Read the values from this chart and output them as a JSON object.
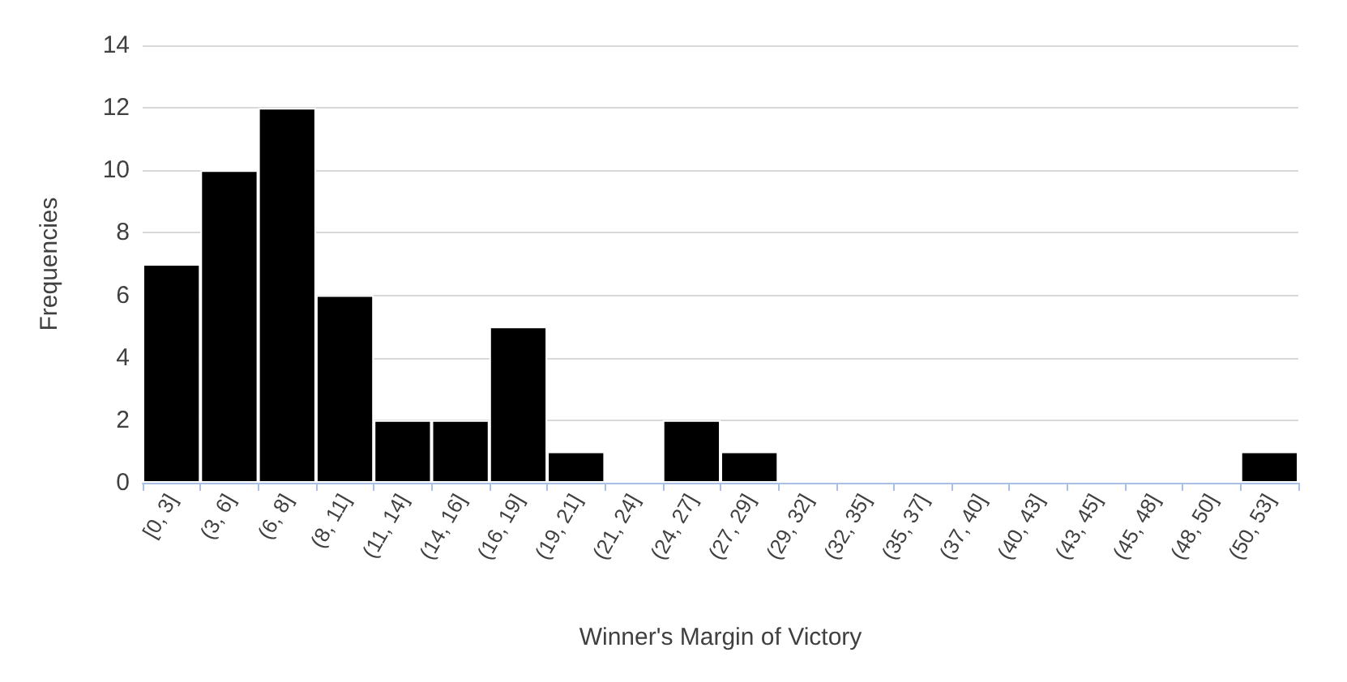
{
  "chart_data": {
    "type": "bar",
    "xlabel": "Winner's Margin of Victory",
    "ylabel": "Frequencies",
    "categories": [
      "[0, 3]",
      "(3, 6]",
      "(6, 8]",
      "(8, 11]",
      "(11, 14]",
      "(14, 16]",
      "(16, 19]",
      "(19, 21]",
      "(21, 24]",
      "(24, 27]",
      "(27, 29]",
      "(29, 32]",
      "(32, 35]",
      "(35, 37]",
      "(37, 40]",
      "(40, 43]",
      "(43, 45]",
      "(45, 48]",
      "(48, 50]",
      "(50, 53]"
    ],
    "values": [
      7,
      10,
      12,
      6,
      2,
      2,
      5,
      1,
      0,
      2,
      1,
      0,
      0,
      0,
      0,
      0,
      0,
      0,
      0,
      1
    ],
    "color": "#000000",
    "ylim": [
      0,
      14
    ],
    "yticks": [
      0,
      2,
      4,
      6,
      8,
      10,
      12,
      14
    ],
    "grid": "y"
  }
}
